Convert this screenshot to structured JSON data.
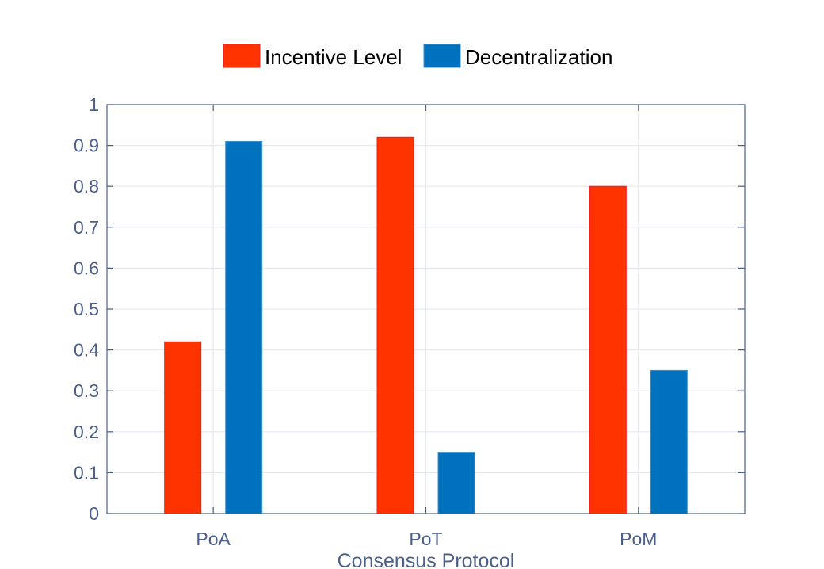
{
  "chart_data": {
    "type": "bar",
    "title": "",
    "xlabel": "Consensus Protocol",
    "ylabel": "",
    "categories": [
      "PoA",
      "PoT",
      "PoM"
    ],
    "series": [
      {
        "name": "Incentive Level",
        "color": "#ff3300",
        "values": [
          0.42,
          0.92,
          0.8
        ]
      },
      {
        "name": "Decentralization",
        "color": "#0072bd",
        "values": [
          0.91,
          0.15,
          0.35
        ]
      }
    ],
    "ylim": [
      0,
      1
    ],
    "yticks": [
      0,
      0.1,
      0.2,
      0.3,
      0.4,
      0.5,
      0.6,
      0.7,
      0.8,
      0.9,
      1
    ],
    "ytick_labels": [
      "0",
      "0.1",
      "0.2",
      "0.3",
      "0.4",
      "0.5",
      "0.6",
      "0.7",
      "0.8",
      "0.9",
      "1"
    ],
    "grid": true,
    "legend_position": "top-center",
    "axis_color": "#4a5f8a",
    "grid_color": "#e6e9f0"
  }
}
